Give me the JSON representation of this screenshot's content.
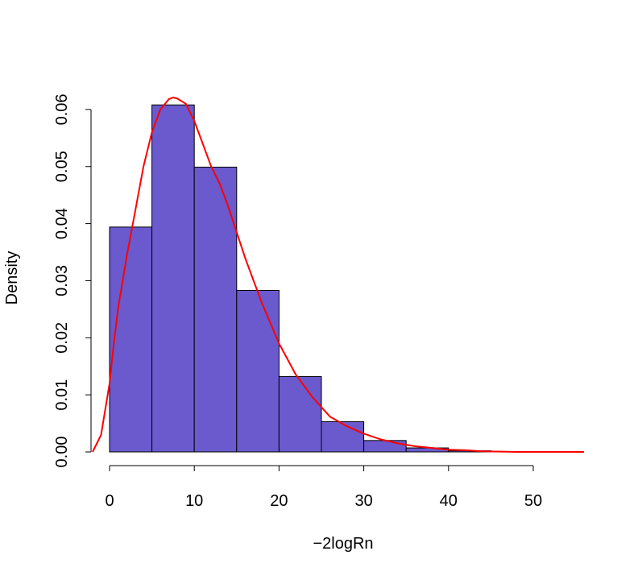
{
  "chart_data": {
    "type": "bar",
    "title": "",
    "xlabel": "−2logRn",
    "ylabel": "Density",
    "xlim": [
      -2,
      56
    ],
    "ylim": [
      0,
      0.062
    ],
    "xticks": [
      "0",
      "10",
      "20",
      "30",
      "40",
      "50"
    ],
    "yticks": [
      "0.00",
      "0.01",
      "0.02",
      "0.03",
      "0.04",
      "0.05",
      "0.06"
    ],
    "bins": [
      {
        "x0": 0,
        "x1": 5,
        "density": 0.0394
      },
      {
        "x0": 5,
        "x1": 10,
        "density": 0.0608
      },
      {
        "x0": 10,
        "x1": 15,
        "density": 0.0499
      },
      {
        "x0": 15,
        "x1": 20,
        "density": 0.0283
      },
      {
        "x0": 20,
        "x1": 25,
        "density": 0.0132
      },
      {
        "x0": 25,
        "x1": 30,
        "density": 0.0053
      },
      {
        "x0": 30,
        "x1": 35,
        "density": 0.002
      },
      {
        "x0": 35,
        "x1": 40,
        "density": 0.0007
      },
      {
        "x0": 40,
        "x1": 45,
        "density": 0.0002
      }
    ],
    "bar_color": "#6A5ACD",
    "density_curve": {
      "color": "#FF0000",
      "x": [
        -2,
        -1,
        0,
        0.5,
        1,
        2,
        3,
        4,
        5,
        6,
        7,
        7.5,
        8,
        9,
        10,
        11,
        12,
        13,
        14,
        15,
        16,
        17,
        18,
        20,
        22,
        24,
        26,
        28,
        30,
        32,
        34,
        36,
        38,
        40,
        42,
        44,
        48,
        52,
        56
      ],
      "y": [
        0,
        0.003,
        0.012,
        0.019,
        0.025,
        0.034,
        0.042,
        0.05,
        0.056,
        0.06,
        0.0618,
        0.0621,
        0.0619,
        0.061,
        0.058,
        0.054,
        0.05,
        0.047,
        0.043,
        0.0385,
        0.034,
        0.03,
        0.026,
        0.019,
        0.0135,
        0.0095,
        0.0062,
        0.0045,
        0.0032,
        0.0022,
        0.0015,
        0.001,
        0.0007,
        0.0004,
        0.0003,
        0.0001,
        0,
        0,
        0
      ]
    }
  }
}
